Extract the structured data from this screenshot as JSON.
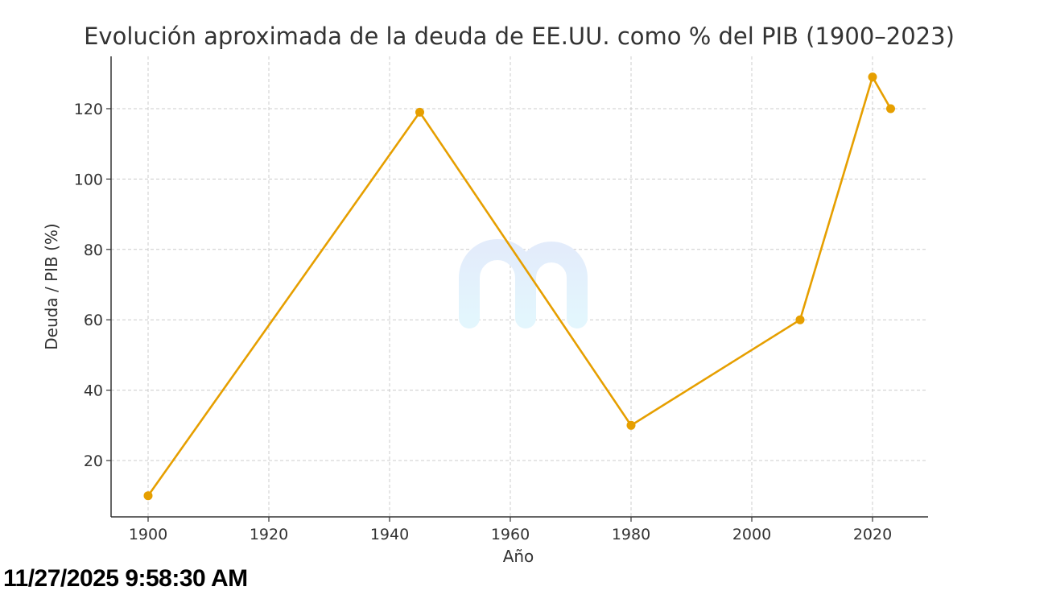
{
  "chart_data": {
    "type": "line",
    "title": "Evolución aproximada de la deuda de EE.UU. como % del PIB (1900–2023)",
    "xlabel": "Año",
    "ylabel": "Deuda / PIB (%)",
    "x": [
      1900,
      1945,
      1980,
      2008,
      2020,
      2023
    ],
    "series": [
      {
        "name": "Deuda / PIB (%)",
        "values": [
          10,
          119,
          30,
          60,
          129,
          120
        ],
        "color": "#E69F00"
      }
    ],
    "xticks": [
      1900,
      1920,
      1940,
      1960,
      1980,
      2000,
      2020
    ],
    "yticks": [
      20,
      40,
      60,
      80,
      100,
      120
    ],
    "xlim": [
      1894,
      2029
    ],
    "ylim": [
      3.5,
      135
    ],
    "grid": true
  },
  "footer": {
    "timestamp": "11/27/2025  9:58:30 AM"
  }
}
